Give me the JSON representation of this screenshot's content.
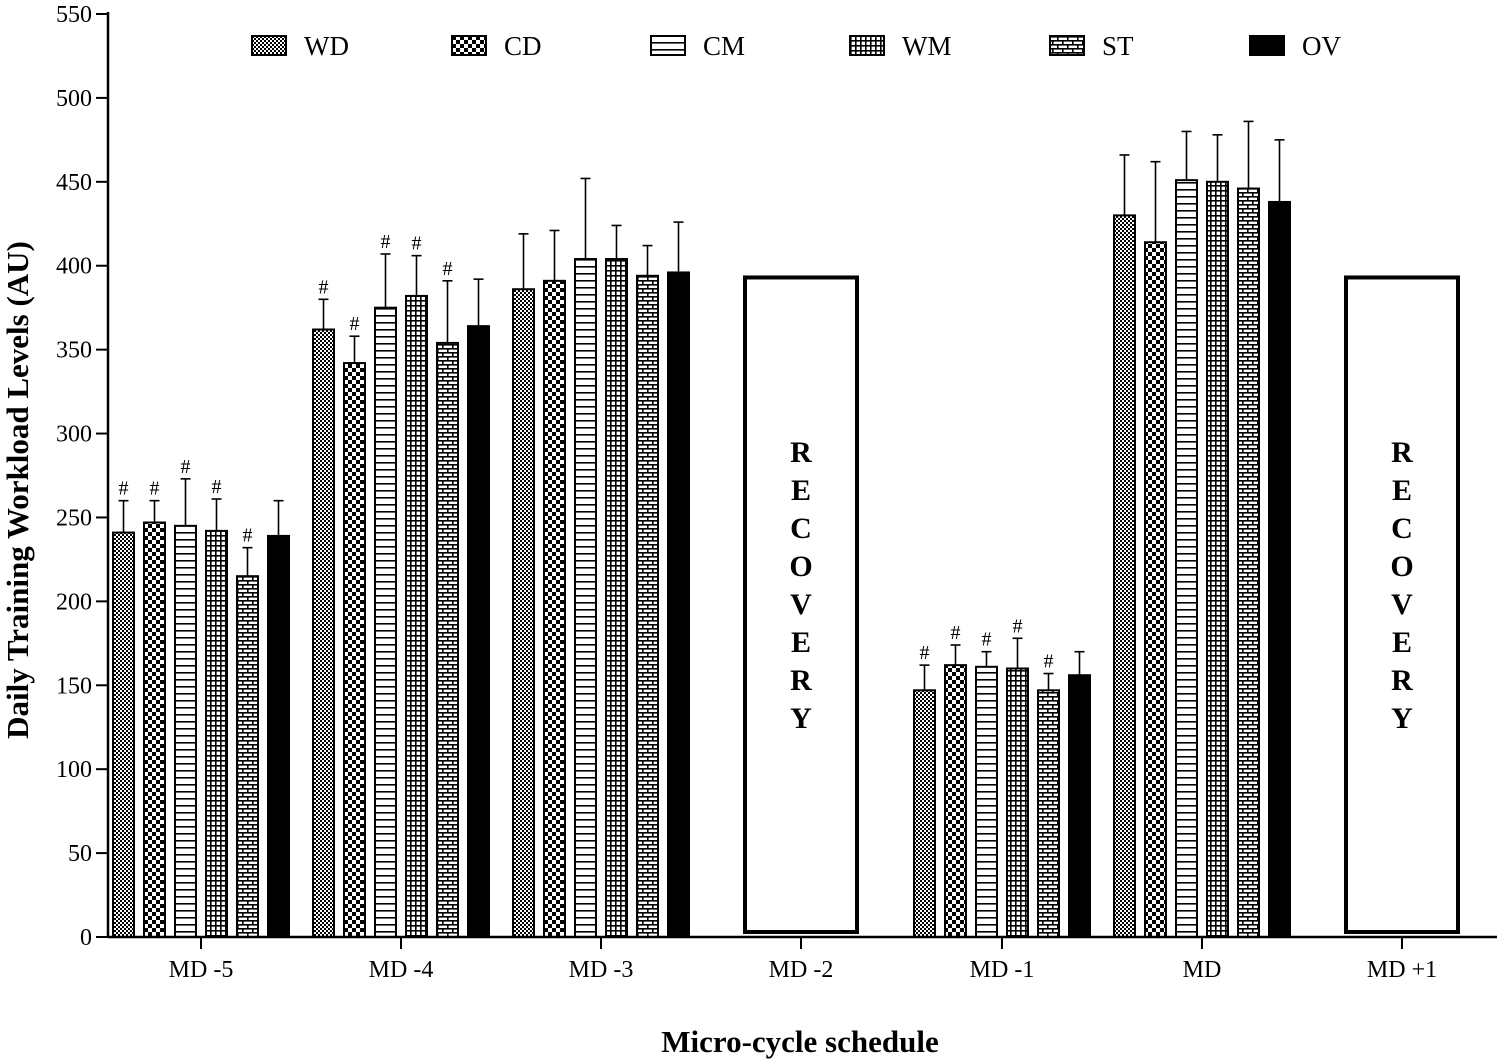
{
  "chart_data": {
    "type": "bar",
    "title": "",
    "xlabel": "Micro-cycle schedule",
    "ylabel": "Daily Training Workload Levels (AU)",
    "ylim": [
      0,
      550
    ],
    "yticks": [
      0,
      50,
      100,
      150,
      200,
      250,
      300,
      350,
      400,
      450,
      500,
      550
    ],
    "categories": [
      "MD -5",
      "MD -4",
      "MD -3",
      "MD -2",
      "MD -1",
      "MD",
      "MD +1"
    ],
    "series": [
      {
        "name": "WD",
        "pattern": "fine-grid",
        "values": [
          241,
          362,
          386,
          null,
          147,
          430,
          null
        ],
        "errors": [
          19,
          18,
          33,
          null,
          15,
          36,
          null
        ],
        "marks": [
          true,
          true,
          false,
          null,
          true,
          false,
          null
        ]
      },
      {
        "name": "CD",
        "pattern": "checker",
        "values": [
          247,
          342,
          391,
          null,
          162,
          414,
          null
        ],
        "errors": [
          13,
          16,
          30,
          null,
          12,
          48,
          null
        ],
        "marks": [
          true,
          true,
          false,
          null,
          true,
          false,
          null
        ]
      },
      {
        "name": "CM",
        "pattern": "horizontal-lines",
        "values": [
          245,
          375,
          404,
          null,
          161,
          451,
          null
        ],
        "errors": [
          28,
          32,
          48,
          null,
          9,
          29,
          null
        ],
        "marks": [
          true,
          true,
          false,
          null,
          true,
          false,
          null
        ]
      },
      {
        "name": "WM",
        "pattern": "dense-grid",
        "values": [
          242,
          382,
          404,
          null,
          160,
          450,
          null
        ],
        "errors": [
          19,
          24,
          20,
          null,
          18,
          28,
          null
        ],
        "marks": [
          true,
          true,
          false,
          null,
          true,
          false,
          null
        ]
      },
      {
        "name": "ST",
        "pattern": "brick",
        "values": [
          215,
          354,
          394,
          null,
          147,
          446,
          null
        ],
        "errors": [
          17,
          37,
          18,
          null,
          10,
          40,
          null
        ],
        "marks": [
          true,
          true,
          false,
          null,
          true,
          false,
          null
        ]
      },
      {
        "name": "OV",
        "pattern": "solid",
        "values": [
          239,
          364,
          396,
          null,
          156,
          438,
          null
        ],
        "errors": [
          21,
          28,
          30,
          null,
          14,
          37,
          null
        ],
        "marks": [
          false,
          false,
          false,
          null,
          false,
          false,
          null
        ]
      }
    ],
    "significance_marker": "#",
    "recovery_boxes": [
      {
        "category": "MD -2",
        "label": "RECOVERY",
        "value": 393
      },
      {
        "category": "MD +1",
        "label": "RECOVERY",
        "value": 393
      }
    ],
    "legend_position": "top"
  },
  "colors": {
    "ink": "#000000",
    "background": "#ffffff"
  }
}
